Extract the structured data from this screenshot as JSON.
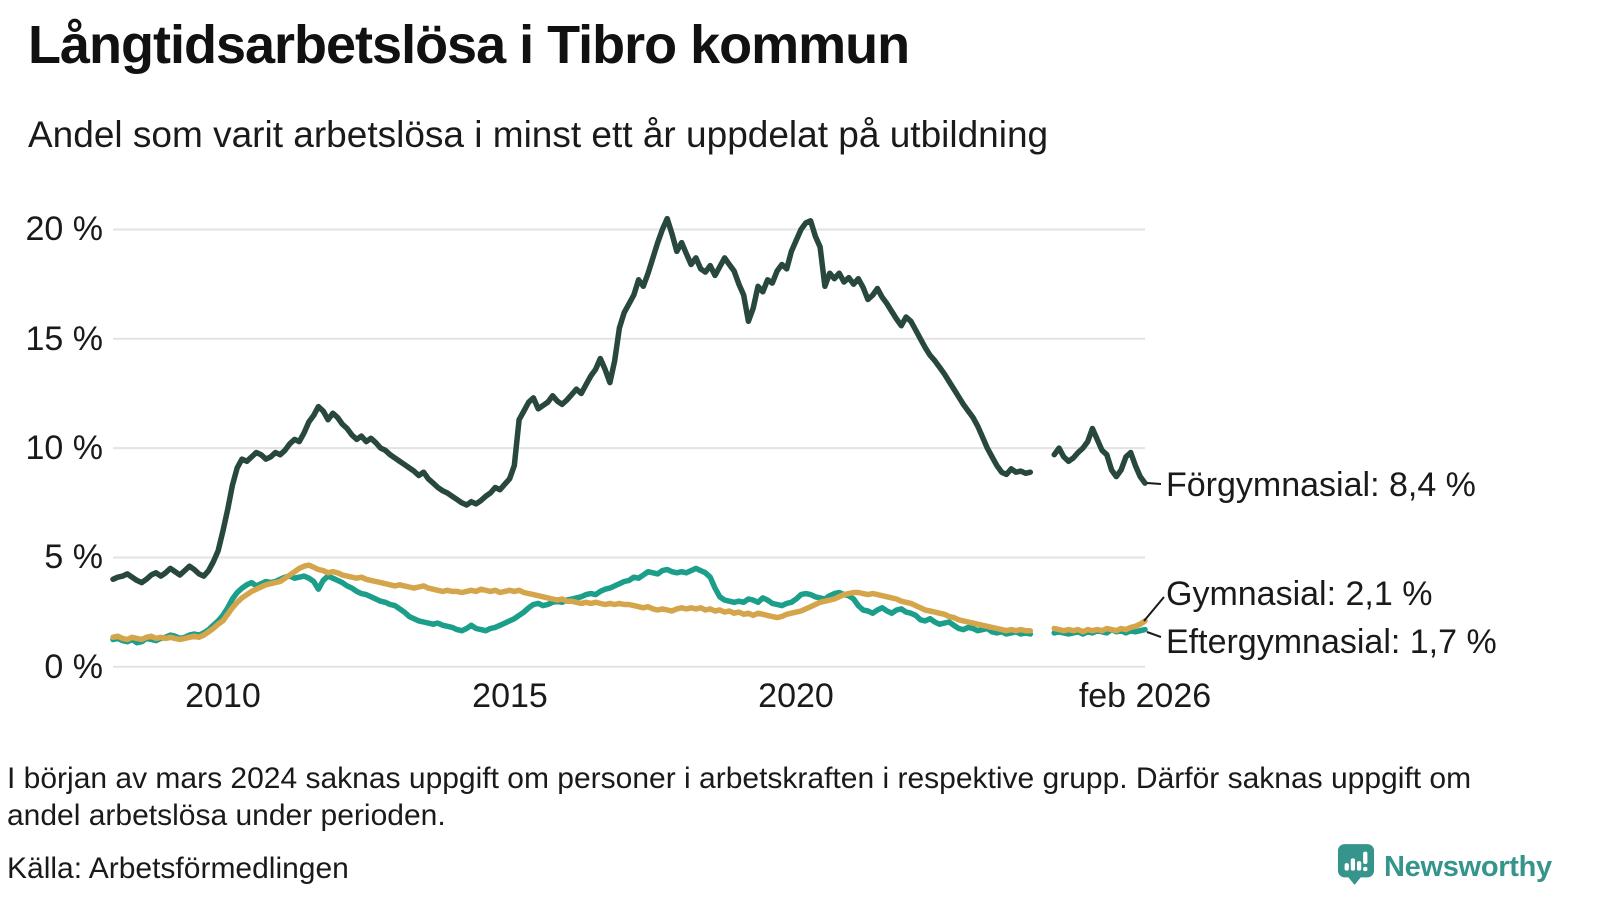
{
  "title": "Långtidsarbetslösa i Tibro kommun",
  "subtitle": "Andel som varit arbetslösa i minst ett år uppdelat på utbildning",
  "footnote": "I början av mars 2024 saknas uppgift om personer i arbetskraften i respektive grupp. Därför saknas uppgift om andel arbetslösa under perioden.",
  "source": "Källa: Arbetsförmedlingen",
  "logo": {
    "text": "Newsworthy",
    "color": "#35948b"
  },
  "y_axis": {
    "ticks": [
      {
        "label": "20 %",
        "value": 20
      },
      {
        "label": "15 %",
        "value": 15
      },
      {
        "label": "10 %",
        "value": 10
      },
      {
        "label": "5 %",
        "value": 5
      },
      {
        "label": "0 %",
        "value": 0
      }
    ]
  },
  "x_axis": {
    "ticks": [
      {
        "label": "2010",
        "month": "2010-01"
      },
      {
        "label": "2015",
        "month": "2015-01"
      },
      {
        "label": "2020",
        "month": "2020-01"
      },
      {
        "label": "feb 2026",
        "month": "2026-02"
      }
    ]
  },
  "chart_data": {
    "type": "line",
    "title": "Långtidsarbetslösa i Tibro kommun",
    "subtitle": "Andel som varit arbetslösa i minst ett år uppdelat på utbildning",
    "unit": "%",
    "frequency": "monthly",
    "x_start": "2008-02",
    "x_end": "2026-02",
    "ylim": [
      0,
      21
    ],
    "grid": "horizontal",
    "missing_period": {
      "from": "2024-03",
      "to": "2024-06"
    },
    "xticks": [
      "2010",
      "2015",
      "2020",
      "feb 2026"
    ],
    "series": [
      {
        "name": "Förgymnasial",
        "color": "#28473e",
        "last_value": 8.4,
        "last_value_label": "Förgymnasial: 8,4 %",
        "values": [
          4.0,
          4.1,
          4.15,
          4.25,
          4.1,
          3.95,
          3.85,
          4.0,
          4.2,
          4.3,
          4.15,
          4.3,
          4.5,
          4.35,
          4.2,
          4.4,
          4.6,
          4.45,
          4.25,
          4.15,
          4.4,
          4.8,
          5.3,
          6.2,
          7.2,
          8.3,
          9.1,
          9.5,
          9.4,
          9.6,
          9.8,
          9.7,
          9.5,
          9.6,
          9.8,
          9.7,
          9.9,
          10.2,
          10.4,
          10.3,
          10.7,
          11.2,
          11.5,
          11.9,
          11.7,
          11.3,
          11.6,
          11.4,
          11.1,
          10.9,
          10.6,
          10.4,
          10.55,
          10.3,
          10.45,
          10.25,
          10.0,
          9.9,
          9.7,
          9.55,
          9.4,
          9.25,
          9.1,
          8.95,
          8.75,
          8.9,
          8.6,
          8.4,
          8.2,
          8.05,
          7.95,
          7.8,
          7.65,
          7.5,
          7.4,
          7.55,
          7.45,
          7.6,
          7.8,
          7.95,
          8.2,
          8.1,
          8.35,
          8.6,
          9.2,
          11.3,
          11.7,
          12.1,
          12.3,
          11.8,
          11.95,
          12.1,
          12.4,
          12.15,
          12.0,
          12.2,
          12.45,
          12.7,
          12.5,
          12.9,
          13.3,
          13.6,
          14.1,
          13.6,
          13.0,
          14.0,
          15.5,
          16.2,
          16.6,
          17.0,
          17.7,
          17.4,
          18.0,
          18.7,
          19.4,
          20.0,
          20.5,
          19.8,
          19.0,
          19.4,
          18.9,
          18.4,
          18.7,
          18.2,
          18.05,
          18.35,
          17.9,
          18.3,
          18.7,
          18.4,
          18.1,
          17.5,
          17.0,
          15.8,
          16.4,
          17.4,
          17.15,
          17.7,
          17.55,
          18.1,
          18.4,
          18.2,
          19.0,
          19.5,
          20.0,
          20.3,
          20.4,
          19.7,
          19.2,
          17.4,
          18.0,
          17.75,
          18.0,
          17.6,
          17.8,
          17.5,
          17.75,
          17.35,
          16.8,
          17.0,
          17.3,
          16.9,
          16.6,
          16.25,
          15.9,
          15.6,
          16.0,
          15.8,
          15.4,
          15.0,
          14.6,
          14.25,
          14.0,
          13.7,
          13.4,
          13.05,
          12.7,
          12.35,
          12.0,
          11.7,
          11.4,
          11.0,
          10.5,
          10.0,
          9.6,
          9.2,
          8.9,
          8.8,
          9.05,
          8.9,
          8.95,
          8.85,
          8.9,
          null,
          null,
          null,
          null,
          9.7,
          10.0,
          9.6,
          9.4,
          9.55,
          9.8,
          10.0,
          10.3,
          10.9,
          10.4,
          9.9,
          9.7,
          9.0,
          8.7,
          9.0,
          9.6,
          9.8,
          9.2,
          8.7,
          8.4
        ]
      },
      {
        "name": "Gymnasial",
        "color": "#d5a54b",
        "last_value": 2.1,
        "last_value_label": "Gymnasial: 2,1 %",
        "values": [
          1.35,
          1.4,
          1.3,
          1.25,
          1.35,
          1.3,
          1.25,
          1.35,
          1.4,
          1.3,
          1.35,
          1.3,
          1.35,
          1.3,
          1.25,
          1.3,
          1.35,
          1.4,
          1.35,
          1.45,
          1.6,
          1.75,
          1.95,
          2.1,
          2.4,
          2.7,
          2.95,
          3.15,
          3.3,
          3.45,
          3.55,
          3.65,
          3.75,
          3.8,
          3.85,
          3.9,
          4.05,
          4.2,
          4.35,
          4.5,
          4.6,
          4.65,
          4.55,
          4.45,
          4.4,
          4.3,
          4.35,
          4.3,
          4.2,
          4.15,
          4.1,
          4.05,
          4.1,
          4.0,
          3.95,
          3.9,
          3.85,
          3.8,
          3.75,
          3.7,
          3.75,
          3.7,
          3.65,
          3.6,
          3.65,
          3.7,
          3.6,
          3.55,
          3.5,
          3.45,
          3.5,
          3.45,
          3.45,
          3.4,
          3.45,
          3.5,
          3.45,
          3.55,
          3.5,
          3.45,
          3.5,
          3.4,
          3.45,
          3.5,
          3.45,
          3.5,
          3.4,
          3.35,
          3.3,
          3.25,
          3.2,
          3.15,
          3.1,
          3.05,
          3.1,
          3.0,
          3.0,
          2.95,
          2.9,
          2.95,
          2.9,
          2.95,
          2.9,
          2.85,
          2.9,
          2.85,
          2.9,
          2.85,
          2.85,
          2.8,
          2.75,
          2.7,
          2.75,
          2.65,
          2.6,
          2.65,
          2.6,
          2.55,
          2.65,
          2.7,
          2.65,
          2.7,
          2.65,
          2.7,
          2.6,
          2.65,
          2.55,
          2.6,
          2.5,
          2.55,
          2.45,
          2.5,
          2.4,
          2.45,
          2.35,
          2.45,
          2.4,
          2.35,
          2.3,
          2.25,
          2.3,
          2.4,
          2.45,
          2.5,
          2.55,
          2.65,
          2.75,
          2.85,
          2.95,
          3.0,
          3.05,
          3.1,
          3.2,
          3.3,
          3.35,
          3.4,
          3.4,
          3.35,
          3.3,
          3.35,
          3.3,
          3.25,
          3.2,
          3.15,
          3.1,
          3.0,
          2.95,
          2.9,
          2.8,
          2.7,
          2.6,
          2.55,
          2.5,
          2.45,
          2.4,
          2.3,
          2.25,
          2.15,
          2.1,
          2.05,
          2.0,
          1.95,
          1.9,
          1.85,
          1.8,
          1.75,
          1.7,
          1.65,
          1.7,
          1.65,
          1.7,
          1.65,
          1.65,
          null,
          null,
          null,
          null,
          1.75,
          1.7,
          1.65,
          1.7,
          1.65,
          1.7,
          1.6,
          1.7,
          1.65,
          1.7,
          1.65,
          1.75,
          1.7,
          1.65,
          1.75,
          1.7,
          1.8,
          1.85,
          1.95,
          2.1
        ]
      },
      {
        "name": "Eftergymnasial",
        "color": "#1b9e8a",
        "last_value": 1.7,
        "last_value_label": "Eftergymnasial: 1,7 %",
        "values": [
          1.25,
          1.3,
          1.2,
          1.15,
          1.25,
          1.1,
          1.15,
          1.3,
          1.25,
          1.2,
          1.3,
          1.35,
          1.45,
          1.4,
          1.3,
          1.35,
          1.45,
          1.5,
          1.45,
          1.55,
          1.7,
          1.9,
          2.1,
          2.35,
          2.7,
          3.1,
          3.4,
          3.6,
          3.75,
          3.85,
          3.7,
          3.8,
          3.9,
          3.85,
          3.9,
          4.0,
          4.1,
          4.15,
          4.05,
          4.1,
          4.15,
          4.05,
          3.9,
          3.55,
          3.95,
          4.15,
          4.05,
          3.95,
          3.85,
          3.7,
          3.6,
          3.45,
          3.35,
          3.3,
          3.2,
          3.1,
          3.0,
          2.95,
          2.85,
          2.8,
          2.65,
          2.5,
          2.3,
          2.2,
          2.1,
          2.05,
          2.0,
          1.95,
          2.0,
          1.9,
          1.85,
          1.8,
          1.7,
          1.65,
          1.75,
          1.9,
          1.75,
          1.7,
          1.65,
          1.75,
          1.8,
          1.9,
          2.0,
          2.1,
          2.2,
          2.35,
          2.5,
          2.7,
          2.85,
          2.9,
          2.8,
          2.85,
          2.95,
          3.0,
          2.95,
          3.05,
          3.1,
          3.15,
          3.2,
          3.3,
          3.35,
          3.3,
          3.45,
          3.55,
          3.6,
          3.7,
          3.8,
          3.9,
          3.95,
          4.1,
          4.05,
          4.2,
          4.35,
          4.3,
          4.25,
          4.4,
          4.45,
          4.35,
          4.3,
          4.35,
          4.3,
          4.4,
          4.5,
          4.4,
          4.3,
          4.1,
          3.6,
          3.2,
          3.05,
          3.0,
          2.95,
          3.0,
          2.95,
          3.1,
          3.05,
          2.95,
          3.15,
          3.05,
          2.9,
          2.85,
          2.8,
          2.9,
          2.95,
          3.1,
          3.3,
          3.35,
          3.3,
          3.2,
          3.15,
          3.1,
          3.25,
          3.35,
          3.4,
          3.3,
          3.25,
          3.1,
          2.8,
          2.6,
          2.55,
          2.45,
          2.6,
          2.7,
          2.55,
          2.45,
          2.6,
          2.65,
          2.5,
          2.45,
          2.35,
          2.15,
          2.1,
          2.2,
          2.05,
          1.95,
          2.0,
          2.05,
          1.9,
          1.75,
          1.7,
          1.8,
          1.75,
          1.65,
          1.7,
          1.75,
          1.6,
          1.55,
          1.6,
          1.5,
          1.55,
          1.6,
          1.5,
          1.55,
          1.5,
          null,
          null,
          null,
          null,
          1.55,
          1.6,
          1.55,
          1.5,
          1.55,
          1.6,
          1.5,
          1.6,
          1.55,
          1.65,
          1.6,
          1.55,
          1.7,
          1.6,
          1.65,
          1.55,
          1.65,
          1.6,
          1.65,
          1.7
        ]
      }
    ]
  }
}
